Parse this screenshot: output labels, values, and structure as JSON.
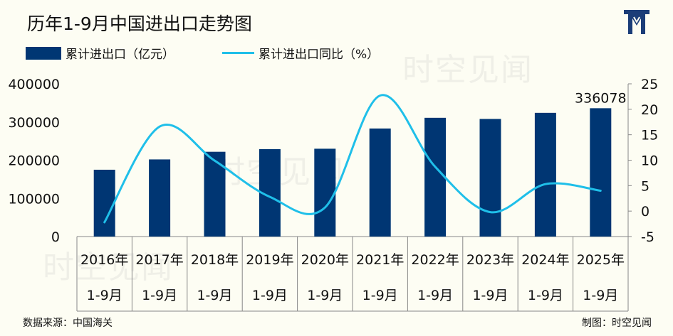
{
  "title": "历年1-9月中国进出口走势图",
  "legend": {
    "bar_label": "累计进出口（亿元）",
    "line_label": "累计进出口同比（%）"
  },
  "source": "数据来源：中国海关",
  "credit": "制图：时空见闻",
  "watermark": "时空见闻",
  "colors": {
    "bar": "#003673",
    "line": "#1fbfe9",
    "background": "#fdfdf3"
  },
  "chart_data": {
    "type": "bar+line",
    "categories": [
      "2016年",
      "2017年",
      "2018年",
      "2019年",
      "2020年",
      "2021年",
      "2022年",
      "2023年",
      "2024年",
      "2025年"
    ],
    "category_sublabel": "1-9月",
    "series": [
      {
        "name": "累计进出口（亿元）",
        "type": "bar",
        "axis": "left",
        "values": [
          175000,
          202000,
          222000,
          229000,
          230000,
          283000,
          311000,
          308000,
          324000,
          336078
        ]
      },
      {
        "name": "累计进出口同比（%）",
        "type": "line",
        "axis": "right",
        "values": [
          -2.2,
          16.6,
          9.9,
          2.8,
          0.7,
          22.7,
          8.7,
          -0.2,
          5.3,
          4.0
        ]
      }
    ],
    "data_labels": [
      {
        "index": 9,
        "text": "336078"
      }
    ],
    "left_axis": {
      "min": 0,
      "max": 400000,
      "ticks": [
        "0",
        "100000",
        "200000",
        "300000",
        "400000"
      ]
    },
    "right_axis": {
      "min": -5,
      "max": 25,
      "ticks": [
        "-5",
        "0",
        "5",
        "10",
        "15",
        "20",
        "25"
      ]
    }
  }
}
